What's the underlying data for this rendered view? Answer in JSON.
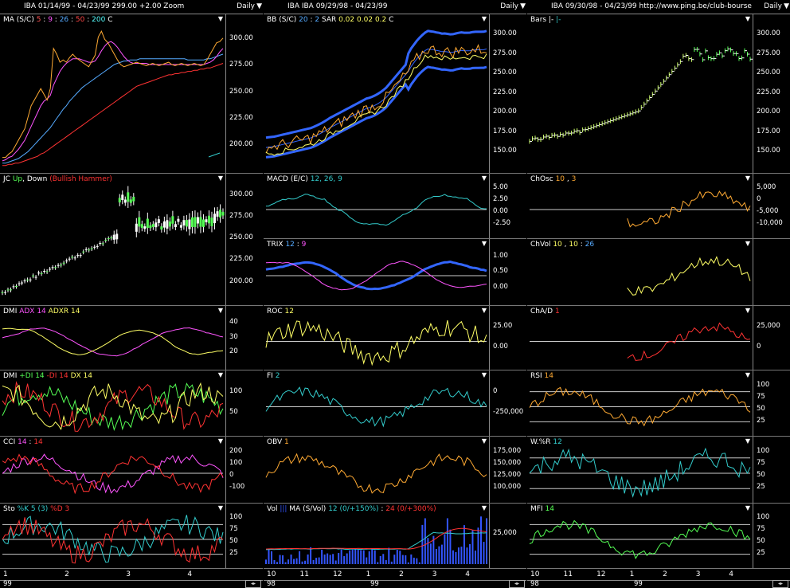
{
  "columns": [
    {
      "header": {
        "left": "IBA  01/14/99 - 04/23/99   299.00  +2.00   Zoom",
        "right": "Daily"
      },
      "panels": [
        {
          "name": "ma",
          "label": [
            {
              "t": "MA (S/C)  ",
              "c": "#fff"
            },
            {
              "t": "5",
              "c": "#ff5555"
            },
            {
              "t": " : ",
              "c": "#fff"
            },
            {
              "t": "9",
              "c": "#ff55ff"
            },
            {
              "t": " : ",
              "c": "#fff"
            },
            {
              "t": "26",
              "c": "#55aaff"
            },
            {
              "t": " : ",
              "c": "#fff"
            },
            {
              "t": "50",
              "c": "#ff4444"
            },
            {
              "t": " : ",
              "c": "#fff"
            },
            {
              "t": "200",
              "c": "#55ffff"
            },
            {
              "t": "    C",
              "c": "#fff"
            }
          ],
          "ticks": [
            "300.00",
            "275.00",
            "250.00",
            "225.00",
            "200.00"
          ]
        },
        {
          "name": "jc",
          "label": [
            {
              "t": "JC ",
              "c": "#fff"
            },
            {
              "t": "Up",
              "c": "#55ff55"
            },
            {
              "t": ", ",
              "c": "#fff"
            },
            {
              "t": "Down",
              "c": "#fff"
            },
            {
              "t": "  (Bullish Hammer)",
              "c": "#ff3333"
            }
          ],
          "ticks": [
            "300.00",
            "275.00",
            "250.00",
            "225.00",
            "200.00"
          ]
        },
        {
          "name": "dmi",
          "label": [
            {
              "t": "DMI  ",
              "c": "#fff"
            },
            {
              "t": "ADX 14",
              "c": "#ff55ff"
            },
            {
              "t": "  ",
              "c": "#fff"
            },
            {
              "t": "ADXR 14",
              "c": "#ffff66"
            }
          ],
          "ticks": [
            "40",
            "30",
            "20"
          ]
        },
        {
          "name": "dmi2",
          "label": [
            {
              "t": "DMI  ",
              "c": "#fff"
            },
            {
              "t": "+DI 14",
              "c": "#55ff55"
            },
            {
              "t": "  ",
              "c": "#fff"
            },
            {
              "t": "-DI 14",
              "c": "#ff3333"
            },
            {
              "t": "  ",
              "c": "#fff"
            },
            {
              "t": "DX 14",
              "c": "#ffff66"
            }
          ],
          "ticks": [
            "100",
            "50"
          ]
        },
        {
          "name": "cci",
          "label": [
            {
              "t": "CCI  ",
              "c": "#fff"
            },
            {
              "t": "14",
              "c": "#ff55ff"
            },
            {
              "t": " : ",
              "c": "#fff"
            },
            {
              "t": "14",
              "c": "#ff3333"
            }
          ],
          "ticks": [
            "200",
            "100",
            "0",
            "-100"
          ]
        },
        {
          "name": "sto",
          "label": [
            {
              "t": "Sto  ",
              "c": "#fff"
            },
            {
              "t": "%K 5 (3)",
              "c": "#33cccc"
            },
            {
              "t": "  ",
              "c": "#fff"
            },
            {
              "t": "%D 3",
              "c": "#ff3333"
            }
          ],
          "ticks": [
            "100",
            "75",
            "50",
            "25"
          ]
        }
      ],
      "xlabels": [
        "1",
        "2",
        "3",
        "4"
      ],
      "years": [
        "99"
      ]
    },
    {
      "header": {
        "left": "IBA   IBA   09/29/98 - 04/23/99",
        "right": "Daily"
      },
      "panels": [
        {
          "name": "bb",
          "label": [
            {
              "t": "BB (S/C)  ",
              "c": "#fff"
            },
            {
              "t": "20",
              "c": "#55aaff"
            },
            {
              "t": " : ",
              "c": "#fff"
            },
            {
              "t": "2",
              "c": "#55aaff"
            },
            {
              "t": "    SAR  ",
              "c": "#fff"
            },
            {
              "t": "0.02",
              "c": "#ffff66"
            },
            {
              "t": "  ",
              "c": "#fff"
            },
            {
              "t": "0.02",
              "c": "#ffff66"
            },
            {
              "t": "  ",
              "c": "#fff"
            },
            {
              "t": "0.2",
              "c": "#ffff66"
            },
            {
              "t": "    C",
              "c": "#fff"
            }
          ],
          "ticks": [
            "300.00",
            "275.00",
            "250.00",
            "225.00",
            "200.00",
            "175.00",
            "150.00"
          ]
        },
        {
          "name": "macd",
          "label": [
            {
              "t": "MACD (E/C)  ",
              "c": "#fff"
            },
            {
              "t": "12, 26, 9",
              "c": "#33cccc"
            }
          ],
          "ticks": [
            "5.00",
            "2.50",
            "0.00",
            "-2.50"
          ]
        },
        {
          "name": "trix",
          "label": [
            {
              "t": "TRIX  ",
              "c": "#fff"
            },
            {
              "t": "12",
              "c": "#55aaff"
            },
            {
              "t": " : ",
              "c": "#fff"
            },
            {
              "t": "9",
              "c": "#ff55ff"
            }
          ],
          "ticks": [
            "1.00",
            "0.50",
            "0.00"
          ]
        },
        {
          "name": "roc",
          "label": [
            {
              "t": "ROC  ",
              "c": "#fff"
            },
            {
              "t": "12",
              "c": "#ffff66"
            }
          ],
          "ticks": [
            "25.00",
            "0.00"
          ]
        },
        {
          "name": "fi",
          "label": [
            {
              "t": "FI  ",
              "c": "#fff"
            },
            {
              "t": "2",
              "c": "#33cccc"
            }
          ],
          "ticks": [
            "0",
            "-250,000"
          ]
        },
        {
          "name": "obv",
          "label": [
            {
              "t": "OBV  ",
              "c": "#fff"
            },
            {
              "t": "1",
              "c": "#ffaa33"
            }
          ],
          "ticks": [
            "175,000",
            "150,000",
            "125,000",
            "100,000"
          ]
        },
        {
          "name": "vol",
          "label": [
            {
              "t": "Vol  ",
              "c": "#fff"
            },
            {
              "t": "|||",
              "c": "#3355ff"
            },
            {
              "t": "    MA  (S/Vol)  ",
              "c": "#fff"
            },
            {
              "t": "12 (0/+150%)",
              "c": "#33cccc"
            },
            {
              "t": " : ",
              "c": "#fff"
            },
            {
              "t": "24 (0/+300%)",
              "c": "#ff3333"
            }
          ],
          "ticks": [
            "25,000"
          ]
        }
      ],
      "xlabels": [
        "10",
        "11",
        "12",
        "1",
        "2",
        "3",
        "4"
      ],
      "years": [
        "98",
        "99"
      ]
    },
    {
      "header": {
        "left": "IBA   09/30/98 - 04/23/99     http://www.ping.be/club-bourse",
        "right": "Daily"
      },
      "panels": [
        {
          "name": "bars",
          "label": [
            {
              "t": "Bars  ",
              "c": "#fff"
            },
            {
              "t": "|-",
              "c": "#fff"
            },
            {
              "t": "  ",
              "c": "#fff"
            },
            {
              "t": "|-",
              "c": "#33cccc"
            }
          ],
          "ticks": [
            "300.00",
            "275.00",
            "250.00",
            "225.00",
            "200.00",
            "175.00",
            "150.00"
          ]
        },
        {
          "name": "chosc",
          "label": [
            {
              "t": "ChOsc  ",
              "c": "#fff"
            },
            {
              "t": "10",
              "c": "#ffaa33"
            },
            {
              "t": " , ",
              "c": "#fff"
            },
            {
              "t": "3",
              "c": "#ffaa33"
            }
          ],
          "ticks": [
            "5,000",
            "0",
            "-5,000",
            "-10,000"
          ]
        },
        {
          "name": "chvol",
          "label": [
            {
              "t": "ChVol  ",
              "c": "#fff"
            },
            {
              "t": "10",
              "c": "#ffff66"
            },
            {
              "t": " , ",
              "c": "#fff"
            },
            {
              "t": "10",
              "c": "#ffff66"
            },
            {
              "t": " : ",
              "c": "#fff"
            },
            {
              "t": "26",
              "c": "#55aaff"
            }
          ],
          "ticks": []
        },
        {
          "name": "chad",
          "label": [
            {
              "t": "ChA/D  ",
              "c": "#fff"
            },
            {
              "t": "1",
              "c": "#ff3333"
            }
          ],
          "ticks": [
            "25,000",
            "0"
          ]
        },
        {
          "name": "rsi",
          "label": [
            {
              "t": "RSI  ",
              "c": "#fff"
            },
            {
              "t": "14",
              "c": "#ffaa33"
            }
          ],
          "ticks": [
            "100",
            "75",
            "50",
            "25"
          ]
        },
        {
          "name": "wr",
          "label": [
            {
              "t": "W.%R  ",
              "c": "#fff"
            },
            {
              "t": "12",
              "c": "#33cccc"
            }
          ],
          "ticks": [
            "100",
            "75",
            "50",
            "25"
          ]
        },
        {
          "name": "mfi",
          "label": [
            {
              "t": "MFI  ",
              "c": "#fff"
            },
            {
              "t": "14",
              "c": "#55ff55"
            }
          ],
          "ticks": [
            "100",
            "75",
            "50",
            "25"
          ]
        }
      ],
      "xlabels": [
        "10",
        "11",
        "12",
        "1",
        "2",
        "3",
        "4"
      ],
      "years": [
        "98",
        "99"
      ]
    }
  ],
  "chart_data": [
    {
      "type": "line",
      "title": "MA (S/C) 5 : 9 : 26 : 50 : 200",
      "ylim": [
        185,
        310
      ],
      "x": [
        0,
        1,
        2,
        3,
        4,
        5,
        6,
        7,
        8,
        9,
        10,
        11,
        12,
        13,
        14,
        15,
        16,
        17,
        18,
        19,
        20,
        21,
        22,
        23,
        24,
        25,
        26,
        27,
        28,
        29,
        30,
        31,
        32,
        33,
        34,
        35,
        36,
        37,
        38,
        39,
        40,
        41,
        42,
        43,
        44,
        45,
        46,
        47,
        48,
        49,
        50,
        51,
        52,
        53,
        54,
        55,
        56,
        57,
        58,
        59,
        60,
        61,
        62,
        63,
        64,
        65,
        66,
        67,
        68,
        69
      ],
      "series": [
        {
          "name": "C",
          "color": "#ffaa33",
          "values": [
            195,
            195,
            198,
            200,
            205,
            210,
            215,
            220,
            230,
            240,
            245,
            250,
            255,
            250,
            245,
            255,
            290,
            285,
            278,
            280,
            278,
            282,
            285,
            282,
            280,
            278,
            276,
            274,
            279,
            284,
            300,
            305,
            298,
            295,
            290,
            285,
            280,
            276,
            274,
            275,
            276,
            277,
            278,
            277,
            276,
            275,
            276,
            277,
            276,
            275,
            276,
            277,
            278,
            276,
            275,
            276,
            277,
            276,
            275,
            276,
            277,
            276,
            275,
            276,
            280,
            285,
            290,
            295,
            296,
            299
          ]
        },
        {
          "name": "9",
          "color": "#ff55ff",
          "values": [
            192,
            193,
            195,
            196,
            199,
            202,
            206,
            210,
            216,
            222,
            228,
            234,
            240,
            244,
            246,
            249,
            258,
            264,
            270,
            274,
            277,
            279,
            281,
            281,
            281,
            280,
            279,
            278,
            278,
            279,
            283,
            288,
            292,
            295,
            296,
            294,
            291,
            287,
            283,
            280,
            278,
            277,
            277,
            277,
            277,
            277,
            276,
            276,
            276,
            276,
            276,
            276,
            276,
            276,
            276,
            276,
            276,
            276,
            276,
            276,
            276,
            276,
            276,
            276,
            277,
            278,
            280,
            283,
            287,
            290
          ]
        },
        {
          "name": "26",
          "color": "#55aaff",
          "values": [
            190,
            190,
            191,
            192,
            193,
            194,
            196,
            198,
            200,
            203,
            206,
            209,
            212,
            215,
            218,
            221,
            225,
            229,
            233,
            237,
            240,
            244,
            247,
            250,
            253,
            256,
            258,
            260,
            262,
            264,
            266,
            268,
            270,
            272,
            274,
            276,
            277,
            278,
            279,
            279,
            280,
            280,
            280,
            281,
            281,
            281,
            281,
            281,
            281,
            281,
            281,
            281,
            281,
            281,
            281,
            281,
            281,
            281,
            280,
            280,
            280,
            280,
            280,
            280,
            281,
            281,
            282,
            283,
            284,
            285
          ]
        },
        {
          "name": "50",
          "color": "#ff3333",
          "values": [
            188,
            188,
            189,
            189,
            190,
            190,
            191,
            192,
            193,
            194,
            195,
            196,
            198,
            199,
            201,
            203,
            205,
            207,
            209,
            211,
            213,
            215,
            217,
            219,
            221,
            223,
            225,
            227,
            229,
            231,
            233,
            235,
            237,
            239,
            241,
            243,
            245,
            247,
            249,
            251,
            253,
            255,
            257,
            258,
            259,
            260,
            261,
            262,
            263,
            264,
            265,
            266,
            267,
            267,
            268,
            268,
            269,
            269,
            270,
            270,
            271,
            271,
            272,
            272,
            273,
            273,
            274,
            275,
            276,
            277
          ]
        }
      ]
    },
    {
      "type": "line",
      "title": "BB (S/C) 20 : 2",
      "ylim": [
        140,
        315
      ]
    },
    {
      "type": "line",
      "title": "Sto %K 5 (3) %D 3",
      "ylim": [
        0,
        100
      ]
    }
  ]
}
